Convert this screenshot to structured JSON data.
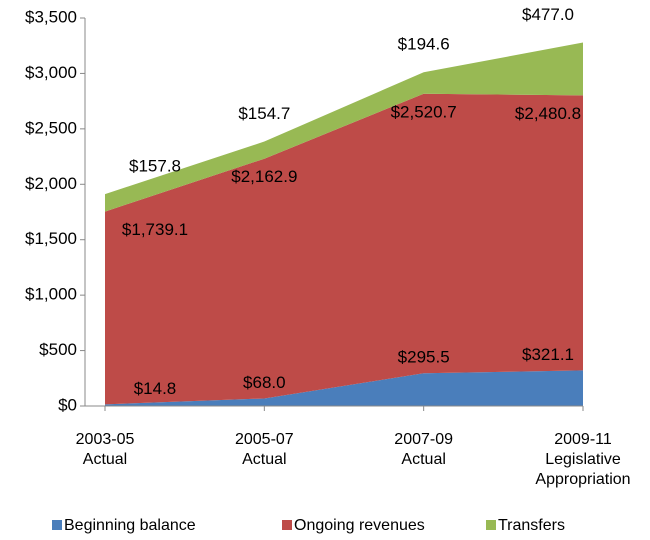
{
  "chart_data": {
    "type": "stacked_area",
    "categories": [
      [
        "2003-05",
        "Actual"
      ],
      [
        "2005-07",
        "Actual"
      ],
      [
        "2007-09",
        "Actual"
      ],
      [
        "2009-11",
        "Legislative",
        "Appropriation"
      ]
    ],
    "series": [
      {
        "name": "Beginning balance",
        "color": "#4a7ebb",
        "values": [
          14.8,
          68.0,
          295.5,
          321.1
        ],
        "value_labels": [
          "$14.8",
          "$68.0",
          "$295.5",
          "$321.1"
        ]
      },
      {
        "name": "Ongoing revenues",
        "color": "#be4b48",
        "values": [
          1739.1,
          2162.9,
          2520.7,
          2480.8
        ],
        "value_labels": [
          "$1,739.1",
          "$2,162.9",
          "$2,520.7",
          "$2,480.8"
        ]
      },
      {
        "name": "Transfers",
        "color": "#98b954",
        "values": [
          157.8,
          154.7,
          194.6,
          477.0
        ],
        "value_labels": [
          "$157.8",
          "$154.7",
          "$194.6",
          "$477.0"
        ]
      }
    ],
    "ylim": [
      0,
      3500
    ],
    "yticks": [
      {
        "value": 0,
        "label": "$0"
      },
      {
        "value": 500,
        "label": "$500"
      },
      {
        "value": 1000,
        "label": "$1,000"
      },
      {
        "value": 1500,
        "label": "$1,500"
      },
      {
        "value": 2000,
        "label": "$2,000"
      },
      {
        "value": 2500,
        "label": "$2,500"
      },
      {
        "value": 3000,
        "label": "$3,000"
      },
      {
        "value": 3500,
        "label": "$3,500"
      }
    ],
    "legend": "bottom"
  }
}
